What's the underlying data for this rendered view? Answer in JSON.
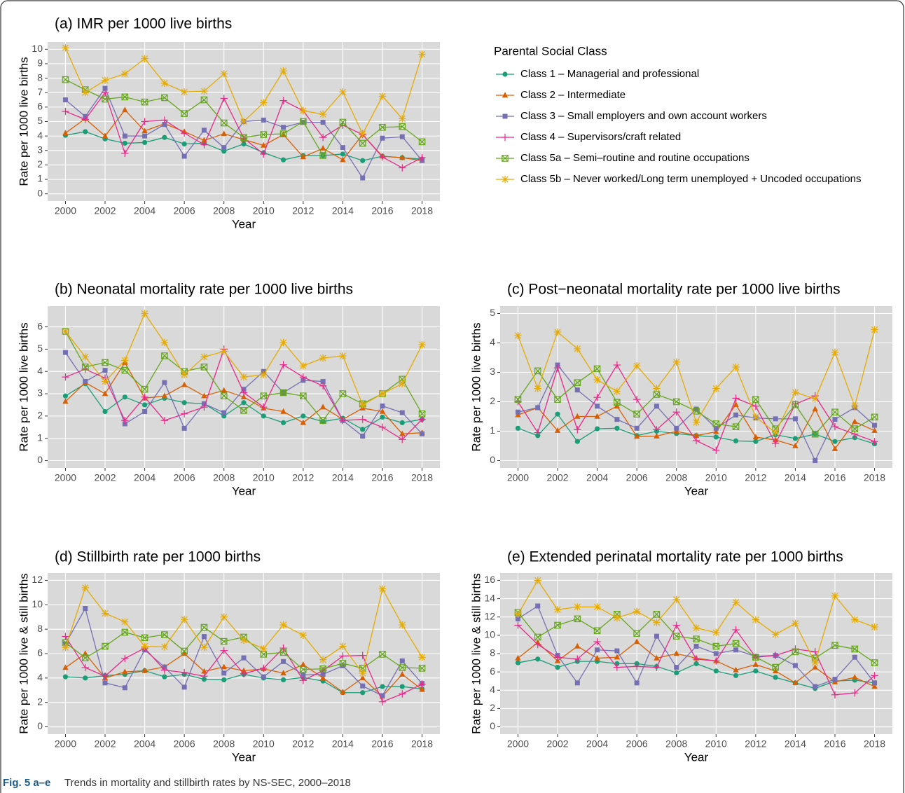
{
  "legend_title": "Parental Social Class",
  "caption_label": "Fig. 5 a–e",
  "caption": "Trends in mortality and stillbirth rates by NS-SEC, 2000–2018",
  "chart_data": [
    {
      "type": "line",
      "title": "(a) IMR per 1000 live births",
      "xlabel": "Year",
      "ylabel": "Rate per 1000 live births",
      "x": [
        2000,
        2001,
        2002,
        2003,
        2004,
        2005,
        2006,
        2007,
        2008,
        2009,
        2010,
        2011,
        2012,
        2013,
        2014,
        2015,
        2016,
        2017,
        2018
      ],
      "xlim": [
        1999.1,
        2018.9
      ],
      "xticks": [
        2000,
        2002,
        2004,
        2006,
        2008,
        2010,
        2012,
        2014,
        2016,
        2018
      ],
      "ylim": [
        -0.5,
        10.5
      ],
      "yticks": [
        0,
        1,
        2,
        3,
        4,
        5,
        6,
        7,
        8,
        9,
        10
      ],
      "grid": true,
      "series": [
        {
          "name": "Class 1 – Managerial and professional",
          "color": "#1b9e77",
          "marker": "circle",
          "values": [
            4.05,
            4.3,
            3.8,
            3.5,
            3.55,
            3.9,
            3.45,
            3.5,
            2.95,
            3.45,
            2.85,
            2.35,
            2.65,
            2.65,
            2.75,
            2.3,
            2.6,
            2.5,
            2.4
          ]
        },
        {
          "name": "Class 2 – Intermediate",
          "color": "#d95f02",
          "marker": "triangle",
          "values": [
            4.2,
            5.2,
            4.0,
            5.8,
            4.35,
            4.85,
            4.3,
            3.7,
            4.15,
            3.75,
            3.35,
            4.1,
            2.55,
            3.15,
            2.35,
            4.1,
            2.6,
            2.5,
            2.3
          ]
        },
        {
          "name": "Class 3 – Small employers and own account workers",
          "color": "#7570b3",
          "marker": "square",
          "values": [
            6.5,
            5.35,
            7.3,
            4.0,
            4.0,
            4.8,
            2.6,
            4.4,
            3.2,
            5.0,
            5.1,
            4.6,
            4.95,
            4.95,
            3.2,
            1.1,
            3.85,
            3.95,
            2.3
          ]
        },
        {
          "name": "Class 4 – Supervisors/craft related",
          "color": "#e7298a",
          "marker": "plus",
          "values": [
            5.7,
            5.15,
            7.0,
            2.8,
            5.0,
            5.1,
            4.2,
            3.4,
            6.6,
            3.85,
            2.75,
            6.45,
            5.75,
            3.9,
            4.75,
            4.1,
            2.55,
            1.8,
            2.5
          ]
        },
        {
          "name": "Class 5a – Semi–routine and routine occupations",
          "color": "#66a61e",
          "marker": "boxcross",
          "values": [
            7.9,
            7.2,
            6.55,
            6.7,
            6.35,
            6.65,
            5.55,
            6.5,
            4.9,
            3.9,
            4.1,
            4.15,
            5.0,
            2.65,
            4.95,
            3.5,
            4.6,
            4.65,
            3.6
          ]
        },
        {
          "name": "Class 5b – Never worked/Long term unemployed + Uncoded occupations",
          "color": "#e6ab02",
          "marker": "asterisk",
          "values": [
            10.1,
            7.0,
            7.85,
            8.3,
            9.35,
            7.65,
            7.05,
            7.1,
            8.3,
            5.0,
            6.3,
            8.5,
            5.75,
            5.5,
            7.05,
            4.15,
            6.75,
            5.2,
            9.65
          ]
        }
      ]
    },
    {
      "type": "line",
      "title": "(b) Neonatal mortality rate per 1000 live births",
      "xlabel": "Year",
      "ylabel": "Rate per 1000 live births",
      "x": [
        2000,
        2001,
        2002,
        2003,
        2004,
        2005,
        2006,
        2007,
        2008,
        2009,
        2010,
        2011,
        2012,
        2013,
        2014,
        2015,
        2016,
        2017,
        2018
      ],
      "xlim": [
        1999.1,
        2018.9
      ],
      "xticks": [
        2000,
        2002,
        2004,
        2006,
        2008,
        2010,
        2012,
        2014,
        2016,
        2018
      ],
      "ylim": [
        -0.33,
        6.93
      ],
      "yticks": [
        0,
        1,
        2,
        3,
        4,
        5,
        6
      ],
      "grid": true,
      "series": [
        {
          "color": "#1b9e77",
          "marker": "circle",
          "values": [
            2.9,
            3.45,
            2.2,
            2.85,
            2.5,
            2.8,
            2.6,
            2.55,
            2.0,
            2.6,
            2.0,
            1.7,
            2.0,
            1.75,
            1.9,
            1.4,
            1.95,
            1.7,
            1.85
          ]
        },
        {
          "color": "#d95f02",
          "marker": "triangle",
          "values": [
            2.65,
            3.5,
            3.0,
            4.4,
            2.8,
            2.9,
            3.4,
            2.9,
            3.15,
            2.85,
            2.35,
            2.2,
            1.7,
            2.4,
            1.85,
            2.35,
            2.2,
            1.2,
            1.25
          ]
        },
        {
          "color": "#7570b3",
          "marker": "square",
          "values": [
            4.85,
            3.55,
            4.05,
            1.65,
            2.2,
            3.5,
            1.45,
            2.55,
            2.15,
            3.2,
            4.0,
            3.05,
            3.6,
            3.55,
            1.8,
            1.1,
            2.45,
            2.15,
            1.2
          ]
        },
        {
          "color": "#e7298a",
          "marker": "plus",
          "values": [
            3.75,
            4.1,
            3.7,
            1.8,
            2.85,
            1.8,
            2.1,
            2.4,
            5.0,
            3.05,
            2.4,
            4.3,
            3.75,
            3.35,
            1.8,
            1.85,
            1.5,
            0.95,
            1.85
          ]
        },
        {
          "color": "#66a61e",
          "marker": "boxcross",
          "values": [
            5.8,
            4.2,
            4.4,
            4.05,
            3.2,
            4.7,
            4.0,
            4.2,
            2.9,
            2.25,
            2.9,
            3.05,
            2.9,
            1.8,
            3.0,
            2.55,
            3.0,
            3.65,
            2.1
          ]
        },
        {
          "color": "#e6ab02",
          "marker": "asterisk",
          "values": [
            5.8,
            4.65,
            3.55,
            4.5,
            6.6,
            5.3,
            3.85,
            4.65,
            4.9,
            3.75,
            3.85,
            5.3,
            4.25,
            4.6,
            4.7,
            2.5,
            3.0,
            3.45,
            5.2
          ]
        }
      ]
    },
    {
      "type": "line",
      "title": "(c) Post−neonatal mortality rate per 1000 live births",
      "xlabel": "Year",
      "ylabel": "Rate per 1000 live births",
      "x": [
        2000,
        2001,
        2002,
        2003,
        2004,
        2005,
        2006,
        2007,
        2008,
        2009,
        2010,
        2011,
        2012,
        2013,
        2014,
        2015,
        2016,
        2017,
        2018
      ],
      "xlim": [
        1999.1,
        2018.9
      ],
      "xticks": [
        2000,
        2002,
        2004,
        2006,
        2008,
        2010,
        2012,
        2014,
        2016,
        2018
      ],
      "ylim": [
        -0.25,
        5.25
      ],
      "yticks": [
        0,
        1,
        2,
        3,
        4,
        5
      ],
      "grid": true,
      "series": [
        {
          "color": "#1b9e77",
          "marker": "circle",
          "values": [
            1.1,
            0.85,
            1.58,
            0.65,
            1.08,
            1.1,
            0.85,
            1.0,
            0.92,
            0.85,
            0.8,
            0.67,
            0.65,
            0.88,
            0.75,
            0.9,
            0.65,
            0.78,
            0.57
          ]
        },
        {
          "color": "#d95f02",
          "marker": "triangle",
          "values": [
            1.55,
            1.8,
            1.02,
            1.5,
            1.5,
            1.85,
            0.82,
            0.83,
            1.0,
            0.85,
            0.98,
            1.9,
            0.8,
            0.7,
            0.5,
            1.75,
            0.4,
            1.32,
            1.02
          ]
        },
        {
          "color": "#7570b3",
          "marker": "square",
          "values": [
            1.65,
            1.8,
            3.25,
            2.4,
            1.85,
            1.4,
            1.1,
            1.85,
            1.1,
            1.75,
            1.1,
            1.55,
            1.45,
            1.42,
            1.42,
            0.0,
            1.4,
            1.8,
            1.2
          ]
        },
        {
          "color": "#e7298a",
          "marker": "plus",
          "values": [
            2.0,
            0.95,
            3.15,
            1.05,
            2.15,
            3.25,
            2.08,
            1.05,
            1.65,
            0.68,
            0.35,
            2.12,
            1.85,
            0.58,
            1.92,
            2.2,
            1.15,
            0.9,
            0.65
          ]
        },
        {
          "color": "#66a61e",
          "marker": "boxcross",
          "values": [
            2.08,
            3.05,
            2.08,
            2.65,
            3.12,
            1.98,
            1.58,
            2.25,
            2.0,
            1.68,
            1.25,
            1.15,
            2.08,
            1.08,
            1.9,
            0.9,
            1.65,
            1.08,
            1.48
          ]
        },
        {
          "color": "#e6ab02",
          "marker": "asterisk",
          "values": [
            4.25,
            2.45,
            4.37,
            3.8,
            2.75,
            2.35,
            3.22,
            2.45,
            3.35,
            1.3,
            2.45,
            3.18,
            1.48,
            0.95,
            2.32,
            2.1,
            3.68,
            1.85,
            4.45
          ]
        }
      ]
    },
    {
      "type": "line",
      "title": "(d) Stillbirth rate per 1000 births",
      "xlabel": "Year",
      "ylabel": "Rate per 1000 live & still births",
      "x": [
        2000,
        2001,
        2002,
        2003,
        2004,
        2005,
        2006,
        2007,
        2008,
        2009,
        2010,
        2011,
        2012,
        2013,
        2014,
        2015,
        2016,
        2017,
        2018
      ],
      "xlim": [
        1999.1,
        2018.9
      ],
      "xticks": [
        2000,
        2002,
        2004,
        2006,
        2008,
        2010,
        2012,
        2014,
        2016,
        2018
      ],
      "ylim": [
        -0.6,
        12.6
      ],
      "yticks": [
        0,
        2,
        4,
        6,
        8,
        10,
        12
      ],
      "grid": true,
      "series": [
        {
          "color": "#1b9e77",
          "marker": "circle",
          "values": [
            4.1,
            4.0,
            4.2,
            4.3,
            4.6,
            4.1,
            4.3,
            3.9,
            3.85,
            4.3,
            4.0,
            3.85,
            4.05,
            3.75,
            2.8,
            2.8,
            3.3,
            3.3,
            3.1
          ]
        },
        {
          "color": "#d95f02",
          "marker": "triangle",
          "values": [
            4.85,
            6.0,
            4.0,
            4.5,
            4.6,
            4.9,
            6.0,
            4.55,
            4.9,
            4.6,
            4.75,
            4.4,
            5.1,
            4.0,
            2.85,
            4.0,
            2.5,
            4.3,
            3.05
          ]
        },
        {
          "color": "#7570b3",
          "marker": "square",
          "values": [
            6.8,
            9.7,
            3.6,
            3.2,
            6.3,
            4.9,
            3.25,
            7.4,
            4.4,
            5.65,
            4.1,
            5.35,
            4.25,
            4.3,
            5.0,
            3.35,
            2.55,
            5.4,
            3.55
          ]
        },
        {
          "color": "#e7298a",
          "marker": "plus",
          "values": [
            7.4,
            4.85,
            4.15,
            5.6,
            6.45,
            4.65,
            4.45,
            4.15,
            6.25,
            4.35,
            4.8,
            6.45,
            3.8,
            4.6,
            5.8,
            5.85,
            2.05,
            2.7,
            3.5
          ]
        },
        {
          "color": "#66a61e",
          "marker": "boxcross",
          "values": [
            6.9,
            5.65,
            6.6,
            7.75,
            7.3,
            7.55,
            6.2,
            8.15,
            7.0,
            7.35,
            5.95,
            6.1,
            4.7,
            4.75,
            5.2,
            4.8,
            5.95,
            4.85,
            4.8
          ]
        },
        {
          "color": "#e6ab02",
          "marker": "asterisk",
          "values": [
            6.5,
            11.4,
            9.3,
            8.6,
            6.6,
            6.55,
            8.8,
            6.5,
            9.0,
            7.1,
            6.4,
            8.35,
            7.5,
            5.5,
            6.6,
            4.4,
            11.3,
            8.35,
            5.7
          ]
        }
      ]
    },
    {
      "type": "line",
      "title": "(e) Extended perinatal mortality rate per 1000 births",
      "xlabel": "Year",
      "ylabel": "Rate per 1000 live & still births",
      "x": [
        2000,
        2001,
        2002,
        2003,
        2004,
        2005,
        2006,
        2007,
        2008,
        2009,
        2010,
        2011,
        2012,
        2013,
        2014,
        2015,
        2016,
        2017,
        2018
      ],
      "xlim": [
        1999.1,
        2018.9
      ],
      "xticks": [
        2000,
        2002,
        2004,
        2006,
        2008,
        2010,
        2012,
        2014,
        2016,
        2018
      ],
      "ylim": [
        -0.8,
        16.8
      ],
      "yticks": [
        0,
        2,
        4,
        6,
        8,
        10,
        12,
        14,
        16
      ],
      "grid": true,
      "series": [
        {
          "color": "#1b9e77",
          "marker": "circle",
          "values": [
            7.0,
            7.4,
            6.5,
            7.15,
            7.15,
            6.9,
            6.9,
            6.6,
            5.9,
            6.9,
            6.1,
            5.6,
            6.1,
            5.4,
            4.8,
            4.2,
            5.0,
            5.1,
            4.8
          ]
        },
        {
          "color": "#d95f02",
          "marker": "triangle",
          "values": [
            7.5,
            9.2,
            7.2,
            8.8,
            7.5,
            7.6,
            9.3,
            7.5,
            8.0,
            7.5,
            7.2,
            6.2,
            6.8,
            6.1,
            4.8,
            6.5,
            4.9,
            5.4,
            4.4
          ]
        },
        {
          "color": "#7570b3",
          "marker": "square",
          "values": [
            11.8,
            13.2,
            7.8,
            4.8,
            8.4,
            8.3,
            4.8,
            9.9,
            6.5,
            8.8,
            8.0,
            8.4,
            7.7,
            7.8,
            6.7,
            4.4,
            5.2,
            7.6,
            4.8
          ]
        },
        {
          "color": "#e7298a",
          "marker": "plus",
          "values": [
            11.1,
            9.0,
            7.6,
            7.4,
            9.3,
            6.5,
            6.6,
            6.5,
            11.1,
            7.4,
            7.2,
            10.6,
            7.6,
            7.8,
            8.5,
            8.2,
            3.5,
            3.7,
            5.6
          ]
        },
        {
          "color": "#66a61e",
          "marker": "boxcross",
          "values": [
            12.5,
            9.8,
            11.1,
            11.8,
            10.5,
            12.3,
            10.2,
            12.3,
            9.9,
            9.6,
            8.8,
            9.1,
            7.6,
            6.5,
            8.2,
            7.5,
            8.9,
            8.5,
            7.0
          ]
        },
        {
          "color": "#e6ab02",
          "marker": "asterisk",
          "values": [
            12.3,
            16.0,
            12.8,
            13.1,
            13.1,
            11.9,
            12.6,
            11.4,
            13.9,
            10.8,
            10.3,
            13.6,
            11.7,
            10.1,
            11.3,
            7.0,
            14.3,
            11.7,
            10.9
          ]
        }
      ]
    }
  ]
}
